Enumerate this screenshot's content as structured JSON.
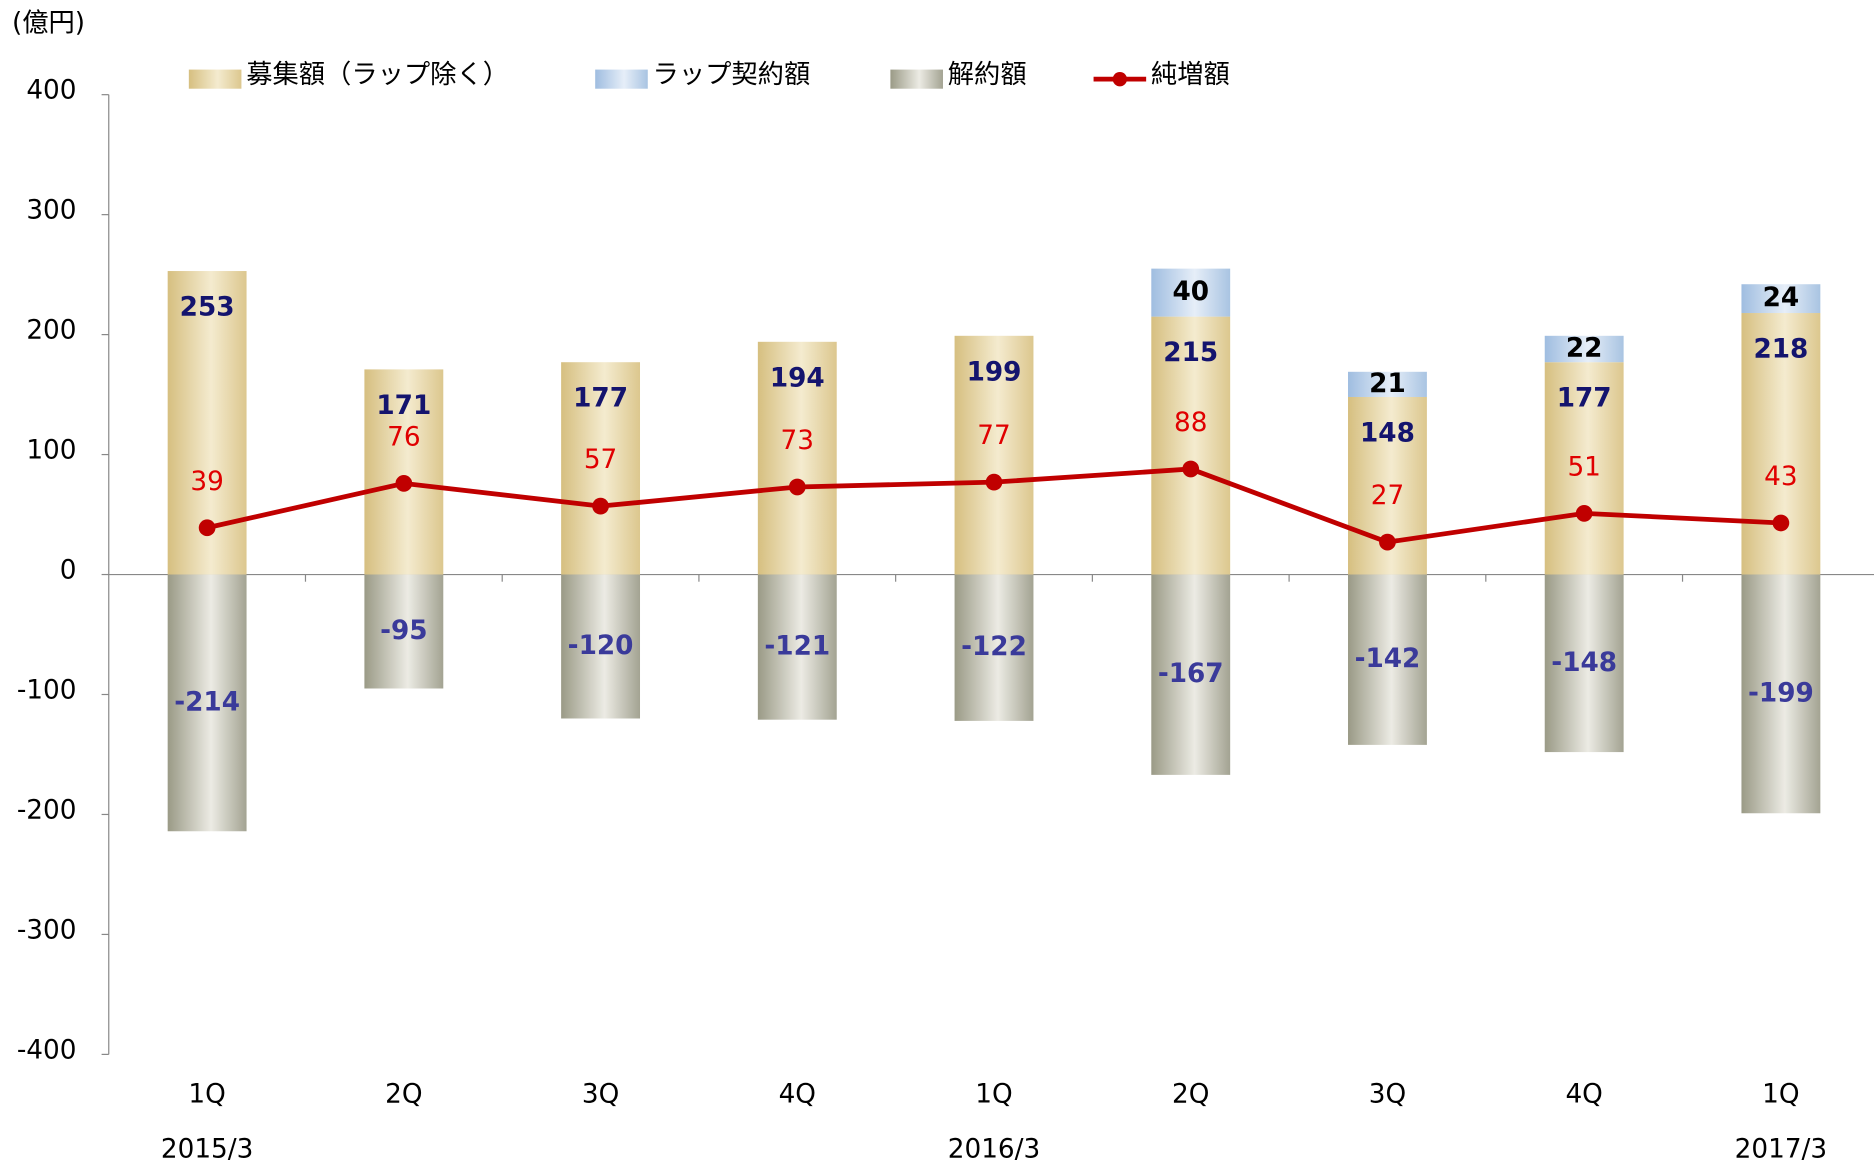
{
  "chart_data": {
    "type": "bar",
    "unit_label": "(億円)",
    "categories": [
      "1Q",
      "2Q",
      "3Q",
      "4Q",
      "1Q",
      "2Q",
      "3Q",
      "4Q",
      "1Q"
    ],
    "year_labels": [
      "2015/3",
      null,
      null,
      null,
      "2016/3",
      null,
      null,
      null,
      "2017/3"
    ],
    "series": [
      {
        "name": "募集額（ラップ除く）",
        "color": "#e2cf98",
        "stack": "pos",
        "values": [
          253,
          171,
          177,
          194,
          199,
          215,
          148,
          177,
          218
        ]
      },
      {
        "name": "ラップ契約額",
        "color": "#b4cde6",
        "stack": "pos",
        "values": [
          null,
          null,
          null,
          null,
          null,
          40,
          21,
          22,
          24
        ]
      },
      {
        "name": "解約額",
        "color": "#bdbdae",
        "stack": "neg",
        "values": [
          -214,
          -95,
          -120,
          -121,
          -122,
          -167,
          -142,
          -148,
          -199
        ]
      },
      {
        "name": "純増額",
        "color": "#c00000",
        "type": "line",
        "values": [
          39,
          76,
          57,
          73,
          77,
          88,
          27,
          51,
          43
        ]
      }
    ],
    "ylim": [
      -400,
      400
    ],
    "yticks": [
      -400,
      -300,
      -200,
      -100,
      0,
      100,
      200,
      300,
      400
    ]
  }
}
